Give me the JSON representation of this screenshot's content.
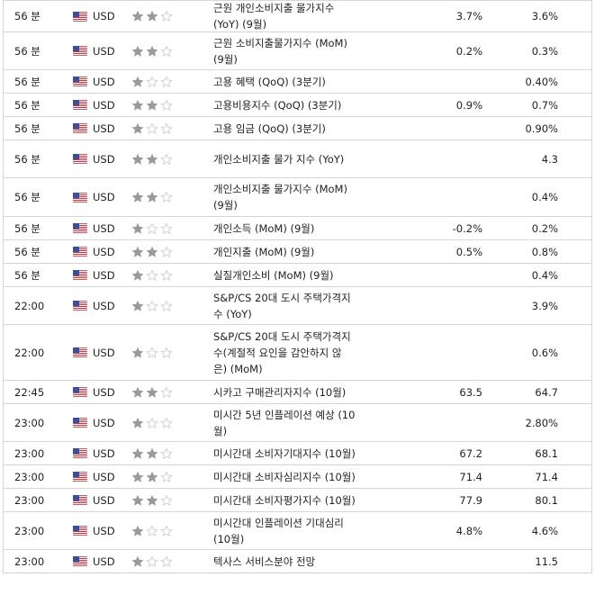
{
  "colors": {
    "star_filled": "#9a9a9a",
    "star_empty": "#cfcfcf",
    "border": "#d6d6d6"
  },
  "rows": [
    {
      "time": "56 분",
      "currency": "USD",
      "importance": 2,
      "event_lines": [
        "근원 개인소비지출 물가지수",
        "(YoY) (9월)"
      ],
      "actual": "3.7%",
      "forecast": "3.6%"
    },
    {
      "time": "56 분",
      "currency": "USD",
      "importance": 2,
      "event_lines": [
        "근원 소비지출물가지수 (MoM)",
        "(9월)"
      ],
      "actual": "0.2%",
      "forecast": "0.3%"
    },
    {
      "time": "56 분",
      "currency": "USD",
      "importance": 1,
      "event_lines": [
        "고용 혜택 (QoQ) (3분기)"
      ],
      "actual": "",
      "forecast": "0.40%"
    },
    {
      "time": "56 분",
      "currency": "USD",
      "importance": 2,
      "event_lines": [
        "고용비용지수 (QoQ) (3분기)"
      ],
      "actual": "0.9%",
      "forecast": "0.7%"
    },
    {
      "time": "56 분",
      "currency": "USD",
      "importance": 1,
      "event_lines": [
        "고용 임금 (QoQ) (3분기)"
      ],
      "actual": "",
      "forecast": "0.90%"
    },
    {
      "time": "56 분",
      "currency": "USD",
      "importance": 2,
      "event_lines": [
        "개인소비지출 물가 지수 (YoY)"
      ],
      "actual": "",
      "forecast": "4.3"
    },
    {
      "time": "56 분",
      "currency": "USD",
      "importance": 2,
      "event_lines": [
        "개인소비지출 물가지수 (MoM)",
        "(9월)"
      ],
      "actual": "",
      "forecast": "0.4%"
    },
    {
      "time": "56 분",
      "currency": "USD",
      "importance": 1,
      "event_lines": [
        "개인소득 (MoM) (9월)"
      ],
      "actual": "-0.2%",
      "forecast": "0.2%"
    },
    {
      "time": "56 분",
      "currency": "USD",
      "importance": 2,
      "event_lines": [
        "개인지출 (MoM) (9월)"
      ],
      "actual": "0.5%",
      "forecast": "0.8%"
    },
    {
      "time": "56 분",
      "currency": "USD",
      "importance": 1,
      "event_lines": [
        "실질개인소비 (MoM) (9월)"
      ],
      "actual": "",
      "forecast": "0.4%"
    },
    {
      "time": "22:00",
      "currency": "USD",
      "importance": 1,
      "event_lines": [
        "S&P/CS 20대 도시 주택가격지",
        "수 (YoY)"
      ],
      "actual": "",
      "forecast": "3.9%"
    },
    {
      "time": "22:00",
      "currency": "USD",
      "importance": 1,
      "event_lines": [
        "S&P/CS 20대 도시 주택가격지",
        "수(계절적 요인을 감안하지 않",
        "은) (MoM)"
      ],
      "actual": "",
      "forecast": "0.6%"
    },
    {
      "time": "22:45",
      "currency": "USD",
      "importance": 2,
      "event_lines": [
        "시카고 구매관리자지수 (10월)"
      ],
      "actual": "63.5",
      "forecast": "64.7"
    },
    {
      "time": "23:00",
      "currency": "USD",
      "importance": 1,
      "event_lines": [
        "미시간 5년 인플레이션 예상 (10",
        "월)"
      ],
      "actual": "",
      "forecast": "2.80%"
    },
    {
      "time": "23:00",
      "currency": "USD",
      "importance": 2,
      "event_lines": [
        "미시간대 소비자기대지수 (10월)"
      ],
      "actual": "67.2",
      "forecast": "68.1"
    },
    {
      "time": "23:00",
      "currency": "USD",
      "importance": 2,
      "event_lines": [
        "미시간대 소비자심리지수 (10월)"
      ],
      "actual": "71.4",
      "forecast": "71.4"
    },
    {
      "time": "23:00",
      "currency": "USD",
      "importance": 2,
      "event_lines": [
        "미시간대 소비자평가지수 (10월)"
      ],
      "actual": "77.9",
      "forecast": "80.1"
    },
    {
      "time": "23:00",
      "currency": "USD",
      "importance": 1,
      "event_lines": [
        "미시간대 인플레이션 기대심리",
        "(10월)"
      ],
      "actual": "4.8%",
      "forecast": "4.6%"
    },
    {
      "time": "23:00",
      "currency": "USD",
      "importance": 1,
      "event_lines": [
        "텍사스 서비스분야 전망"
      ],
      "actual": "",
      "forecast": "11.5"
    }
  ]
}
